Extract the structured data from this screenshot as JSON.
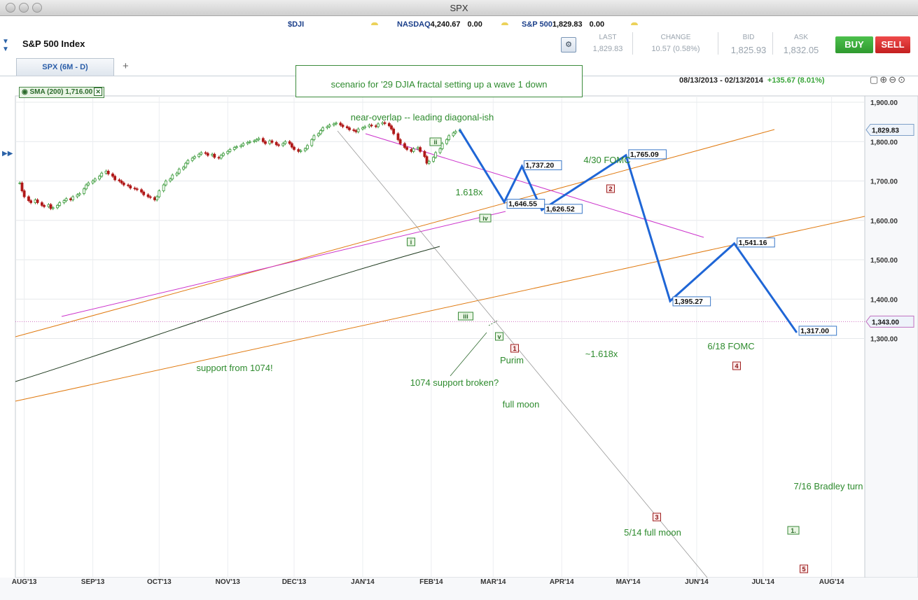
{
  "window": {
    "title": "SPX"
  },
  "tickers": [
    {
      "symbol": "$DJI",
      "value": "",
      "change": ""
    },
    {
      "symbol": "NASDAQ",
      "value": "4,240.67",
      "change": "0.00"
    },
    {
      "symbol": "S&P 500",
      "value": "1,829.83",
      "change": "0.00"
    }
  ],
  "header": {
    "title": "S&P 500 Index"
  },
  "quote": {
    "last_label": "LAST",
    "last": "1,829.83",
    "change_label": "CHANGE",
    "change": "10.57 (0.58%)",
    "bid_label": "BID",
    "bid": "1,825.93",
    "ask_label": "ASK",
    "ask": "1,832.05",
    "buy": "BUY",
    "sell": "SELL"
  },
  "tabs": [
    {
      "label": "SPX (6M - D)"
    }
  ],
  "add_tab": "+",
  "indicator": {
    "label": "SMA (200) 1,716.00",
    "close": "✕"
  },
  "date_range": {
    "range": "08/13/2013 - 02/13/2014",
    "change": "+135.67 (8.01%)"
  },
  "colors": {
    "up": "#3a9a3a",
    "down": "#b01818",
    "projection": "#1f66d6",
    "sma": "#1f3a1f",
    "orange_channel": "#e07a10",
    "magenta": "#cc33cc",
    "annotation": "#2e8b2e",
    "buy": "#3aa53a",
    "sell": "#d92d2d"
  },
  "chart_data": {
    "type": "line",
    "xlabel": "",
    "ylabel": "",
    "ylim": [
      1300,
      1900
    ],
    "y_ticks": [
      "1,900.00",
      "1,800.00",
      "1,700.00",
      "1,600.00",
      "1,500.00",
      "1,400.00",
      "1,300.00"
    ],
    "x_ticks": [
      "AUG'13",
      "SEP'13",
      "OCT'13",
      "NOV'13",
      "DEC'13",
      "JAN'14",
      "FEB'14",
      "MAR'14",
      "APR'14",
      "MAY'14",
      "JUN'14",
      "JUL'14",
      "AUG'14"
    ],
    "last_price_label": "1,829.83",
    "level_label": "1,343.00",
    "price_series": [
      1695,
      1675,
      1660,
      1650,
      1645,
      1652,
      1645,
      1638,
      1635,
      1640,
      1630,
      1632,
      1638,
      1645,
      1650,
      1655,
      1652,
      1660,
      1665,
      1668,
      1680,
      1690,
      1695,
      1700,
      1705,
      1712,
      1720,
      1725,
      1718,
      1712,
      1703,
      1700,
      1695,
      1690,
      1688,
      1682,
      1680,
      1678,
      1672,
      1665,
      1660,
      1658,
      1652,
      1660,
      1675,
      1690,
      1700,
      1705,
      1715,
      1720,
      1730,
      1735,
      1745,
      1752,
      1758,
      1762,
      1768,
      1772,
      1770,
      1765,
      1768,
      1760,
      1758,
      1765,
      1770,
      1775,
      1780,
      1785,
      1787,
      1790,
      1795,
      1798,
      1800,
      1802,
      1805,
      1808,
      1800,
      1795,
      1802,
      1798,
      1792,
      1790,
      1795,
      1800,
      1795,
      1786,
      1780,
      1775,
      1777,
      1782,
      1790,
      1805,
      1815,
      1820,
      1828,
      1835,
      1838,
      1842,
      1845,
      1847,
      1842,
      1838,
      1835,
      1830,
      1828,
      1825,
      1832,
      1835,
      1838,
      1842,
      1840,
      1838,
      1845,
      1848,
      1846,
      1840,
      1832,
      1820,
      1805,
      1795,
      1785,
      1780,
      1775,
      1782,
      1785,
      1775,
      1762,
      1745,
      1750,
      1760,
      1772,
      1782,
      1795,
      1805,
      1815,
      1822,
      1826,
      1829.83
    ],
    "sma200_label": "SMA (200) 1,716.00",
    "projection_path": [
      {
        "date": "2014-02-14",
        "value": 1829
      },
      {
        "date": "2014-03-06",
        "value": 1646.55
      },
      {
        "date": "2014-03-14",
        "value": 1737.2
      },
      {
        "date": "2014-03-23",
        "value": 1626.52
      },
      {
        "date": "2014-04-30",
        "value": 1765.09
      },
      {
        "date": "2014-05-20",
        "value": 1395.27
      },
      {
        "date": "2014-06-18",
        "value": 1541.16
      },
      {
        "date": "2014-07-16",
        "value": 1317.0
      }
    ],
    "point_labels": [
      "1,646.55",
      "1,737.20",
      "1,626.52",
      "1,765.09",
      "1,395.27",
      "1,541.16",
      "1,317.00"
    ],
    "wave_markers": [
      {
        "label": "i",
        "style": "green"
      },
      {
        "label": "ii",
        "style": "green"
      },
      {
        "label": "iii",
        "style": "green"
      },
      {
        "label": "iv",
        "style": "green"
      },
      {
        "label": "v",
        "style": "green"
      },
      {
        "label": "1",
        "style": "red"
      },
      {
        "label": "2",
        "style": "red"
      },
      {
        "label": "3",
        "style": "red"
      },
      {
        "label": "4",
        "style": "red"
      },
      {
        "label": "5",
        "style": "red"
      },
      {
        "label": "1.",
        "style": "green"
      }
    ],
    "annotations": [
      "scenario for '29 DJIA fractal setting up a wave 1 down",
      "near-overlap -- leading diagonal-ish",
      "4/30 FOMC",
      "1.618x",
      "support from 1074!",
      "1074 support broken?",
      "Purim",
      "full moon",
      "~1.618x",
      "6/18 FOMC",
      "7/16 Bradley turn",
      "5/14 full moon"
    ]
  }
}
